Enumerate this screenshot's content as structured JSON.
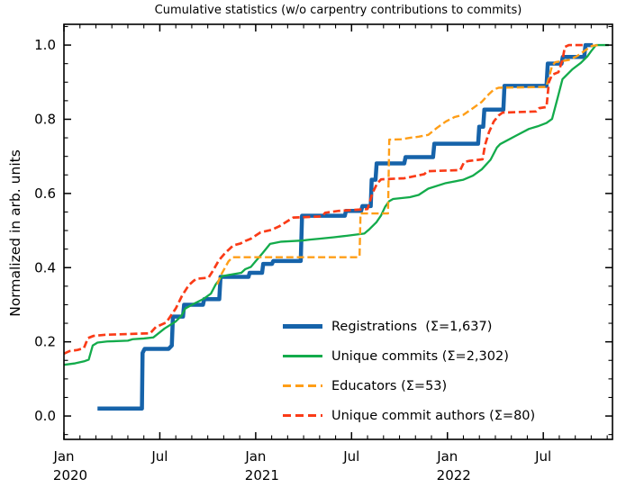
{
  "chart_data": {
    "type": "line",
    "title": "Cumulative statistics (w/o carpentry contributions to commits)",
    "ylabel": "Normalized in arb. units",
    "x_unit": "months since Jan 2020",
    "xlim": [
      0,
      34.33
    ],
    "ylim": [
      -0.063,
      1.056
    ],
    "grid": false,
    "legend_position": "lower right",
    "x_major_ticks": [
      {
        "m": 0,
        "label": "Jan",
        "year": "2020"
      },
      {
        "m": 6,
        "label": "Jul",
        "year": ""
      },
      {
        "m": 12,
        "label": "Jan",
        "year": "2021"
      },
      {
        "m": 18,
        "label": "Jul",
        "year": ""
      },
      {
        "m": 24,
        "label": "Jan",
        "year": "2022"
      },
      {
        "m": 30,
        "label": "Jul",
        "year": ""
      }
    ],
    "x_minor_step": 1,
    "y_major_ticks": [
      0.0,
      0.2,
      0.4,
      0.6,
      0.8,
      1.0
    ],
    "y_minor_step": 0.05,
    "series": [
      {
        "name": "registrations",
        "label": "Registrations  (Σ=1,637)",
        "total": "1,637",
        "color": "#1663aa",
        "style": "solid",
        "width": 4.5,
        "points": [
          [
            2.1,
            0.02
          ],
          [
            4.88,
            0.02
          ],
          [
            4.92,
            0.17
          ],
          [
            5.05,
            0.181
          ],
          [
            6.55,
            0.181
          ],
          [
            6.75,
            0.19
          ],
          [
            6.82,
            0.268
          ],
          [
            7.45,
            0.268
          ],
          [
            7.52,
            0.3
          ],
          [
            8.7,
            0.3
          ],
          [
            8.78,
            0.315
          ],
          [
            9.72,
            0.315
          ],
          [
            9.8,
            0.375
          ],
          [
            11.55,
            0.375
          ],
          [
            11.62,
            0.386
          ],
          [
            12.4,
            0.386
          ],
          [
            12.47,
            0.41
          ],
          [
            13.02,
            0.41
          ],
          [
            13.1,
            0.418
          ],
          [
            14.82,
            0.418
          ],
          [
            14.9,
            0.54
          ],
          [
            17.58,
            0.54
          ],
          [
            17.65,
            0.553
          ],
          [
            18.6,
            0.553
          ],
          [
            18.68,
            0.566
          ],
          [
            19.2,
            0.566
          ],
          [
            19.26,
            0.637
          ],
          [
            19.5,
            0.637
          ],
          [
            19.57,
            0.681
          ],
          [
            21.3,
            0.681
          ],
          [
            21.38,
            0.698
          ],
          [
            23.1,
            0.698
          ],
          [
            23.18,
            0.734
          ],
          [
            25.92,
            0.734
          ],
          [
            25.99,
            0.78
          ],
          [
            26.24,
            0.78
          ],
          [
            26.31,
            0.826
          ],
          [
            27.5,
            0.826
          ],
          [
            27.57,
            0.89
          ],
          [
            30.2,
            0.89
          ],
          [
            30.28,
            0.95
          ],
          [
            31.14,
            0.95
          ],
          [
            31.22,
            0.968
          ],
          [
            32.56,
            0.968
          ],
          [
            32.64,
            1.0
          ],
          [
            33.1,
            1.0
          ]
        ]
      },
      {
        "name": "unique-commits",
        "label": "Unique commits (Σ=2,302)",
        "total": "2,302",
        "color": "#13ab4b",
        "style": "solid",
        "width": 2.3,
        "points": [
          [
            0,
            0.138
          ],
          [
            0.7,
            0.142
          ],
          [
            1.3,
            0.148
          ],
          [
            1.55,
            0.152
          ],
          [
            1.8,
            0.19
          ],
          [
            2.1,
            0.198
          ],
          [
            2.7,
            0.201
          ],
          [
            4.0,
            0.203
          ],
          [
            4.3,
            0.207
          ],
          [
            5.0,
            0.209
          ],
          [
            5.6,
            0.212
          ],
          [
            6.3,
            0.236
          ],
          [
            7.0,
            0.255
          ],
          [
            7.35,
            0.27
          ],
          [
            7.6,
            0.29
          ],
          [
            8.1,
            0.302
          ],
          [
            8.75,
            0.316
          ],
          [
            9.2,
            0.33
          ],
          [
            9.5,
            0.355
          ],
          [
            9.9,
            0.377
          ],
          [
            10.4,
            0.381
          ],
          [
            11.1,
            0.386
          ],
          [
            11.35,
            0.396
          ],
          [
            11.7,
            0.402
          ],
          [
            11.95,
            0.415
          ],
          [
            12.45,
            0.44
          ],
          [
            12.9,
            0.464
          ],
          [
            13.6,
            0.47
          ],
          [
            14.9,
            0.473
          ],
          [
            15.4,
            0.4755
          ],
          [
            16.0,
            0.478
          ],
          [
            16.9,
            0.482
          ],
          [
            17.7,
            0.486
          ],
          [
            18.8,
            0.492
          ],
          [
            19.1,
            0.503
          ],
          [
            19.55,
            0.522
          ],
          [
            19.85,
            0.541
          ],
          [
            20.1,
            0.564
          ],
          [
            20.35,
            0.579
          ],
          [
            20.6,
            0.585
          ],
          [
            21.65,
            0.59
          ],
          [
            22.2,
            0.596
          ],
          [
            22.8,
            0.613
          ],
          [
            23.9,
            0.628
          ],
          [
            25.0,
            0.637
          ],
          [
            25.6,
            0.648
          ],
          [
            26.15,
            0.665
          ],
          [
            26.7,
            0.691
          ],
          [
            27.1,
            0.724
          ],
          [
            27.3,
            0.733
          ],
          [
            28.3,
            0.756
          ],
          [
            29.1,
            0.774
          ],
          [
            29.65,
            0.781
          ],
          [
            30.2,
            0.79
          ],
          [
            30.55,
            0.801
          ],
          [
            30.9,
            0.858
          ],
          [
            31.2,
            0.908
          ],
          [
            31.8,
            0.934
          ],
          [
            32.35,
            0.952
          ],
          [
            32.75,
            0.969
          ],
          [
            33.0,
            0.984
          ],
          [
            33.3,
            1.0
          ],
          [
            34.1,
            1.0
          ]
        ]
      },
      {
        "name": "educators",
        "label": "Educators (Σ=53)",
        "total": "53",
        "color": "#ff9e17",
        "style": "dashed",
        "width": 2.4,
        "points": [
          [
            9.6,
            0.355
          ],
          [
            9.8,
            0.378
          ],
          [
            10.3,
            0.417
          ],
          [
            10.55,
            0.428
          ],
          [
            18.42,
            0.428
          ],
          [
            18.5,
            0.43
          ],
          [
            18.56,
            0.546
          ],
          [
            20.28,
            0.546
          ],
          [
            20.36,
            0.745
          ],
          [
            21.1,
            0.746
          ],
          [
            21.65,
            0.75
          ],
          [
            22.2,
            0.753
          ],
          [
            22.8,
            0.758
          ],
          [
            23.35,
            0.777
          ],
          [
            23.9,
            0.794
          ],
          [
            24.45,
            0.806
          ],
          [
            25.0,
            0.812
          ],
          [
            25.6,
            0.83
          ],
          [
            26.15,
            0.847
          ],
          [
            26.6,
            0.868
          ],
          [
            26.9,
            0.88
          ],
          [
            27.2,
            0.885
          ],
          [
            30.18,
            0.887
          ],
          [
            30.35,
            0.912
          ],
          [
            30.55,
            0.944
          ],
          [
            30.75,
            0.954
          ],
          [
            31.6,
            0.96
          ],
          [
            32.1,
            0.97
          ],
          [
            32.7,
            0.988
          ],
          [
            33.05,
            0.998
          ],
          [
            33.45,
            1.0
          ]
        ]
      },
      {
        "name": "unique-commit-authors",
        "label": "Unique commit authors (Σ=80)",
        "total": "80",
        "color": "#fa3b17",
        "style": "dashed",
        "width": 2.7,
        "points": [
          [
            0,
            0.168
          ],
          [
            0.35,
            0.175
          ],
          [
            0.85,
            0.178
          ],
          [
            1.25,
            0.183
          ],
          [
            1.5,
            0.21
          ],
          [
            1.85,
            0.216
          ],
          [
            2.6,
            0.219
          ],
          [
            5.4,
            0.223
          ],
          [
            5.75,
            0.24
          ],
          [
            6.4,
            0.252
          ],
          [
            7.0,
            0.29
          ],
          [
            7.4,
            0.325
          ],
          [
            7.8,
            0.352
          ],
          [
            8.1,
            0.364
          ],
          [
            8.3,
            0.37
          ],
          [
            9.05,
            0.373
          ],
          [
            9.3,
            0.39
          ],
          [
            9.7,
            0.42
          ],
          [
            10.1,
            0.44
          ],
          [
            10.6,
            0.46
          ],
          [
            11.05,
            0.465
          ],
          [
            11.35,
            0.472
          ],
          [
            11.7,
            0.478
          ],
          [
            12.3,
            0.495
          ],
          [
            13.0,
            0.502
          ],
          [
            13.5,
            0.512
          ],
          [
            14.05,
            0.527
          ],
          [
            14.35,
            0.535
          ],
          [
            16.15,
            0.538
          ],
          [
            16.35,
            0.548
          ],
          [
            17.2,
            0.553
          ],
          [
            19.0,
            0.558
          ],
          [
            19.3,
            0.6
          ],
          [
            19.6,
            0.627
          ],
          [
            19.85,
            0.638
          ],
          [
            21.3,
            0.641
          ],
          [
            22.55,
            0.652
          ],
          [
            22.75,
            0.66
          ],
          [
            24.8,
            0.663
          ],
          [
            25.05,
            0.685
          ],
          [
            25.4,
            0.688
          ],
          [
            26.2,
            0.692
          ],
          [
            26.35,
            0.73
          ],
          [
            26.6,
            0.765
          ],
          [
            26.9,
            0.794
          ],
          [
            27.2,
            0.81
          ],
          [
            27.45,
            0.818
          ],
          [
            29.55,
            0.821
          ],
          [
            29.75,
            0.83
          ],
          [
            30.2,
            0.833
          ],
          [
            30.35,
            0.9
          ],
          [
            30.55,
            0.92
          ],
          [
            30.95,
            0.927
          ],
          [
            31.2,
            0.96
          ],
          [
            31.35,
            0.995
          ],
          [
            31.6,
            1.0
          ],
          [
            32.5,
            1.0
          ]
        ]
      }
    ]
  }
}
